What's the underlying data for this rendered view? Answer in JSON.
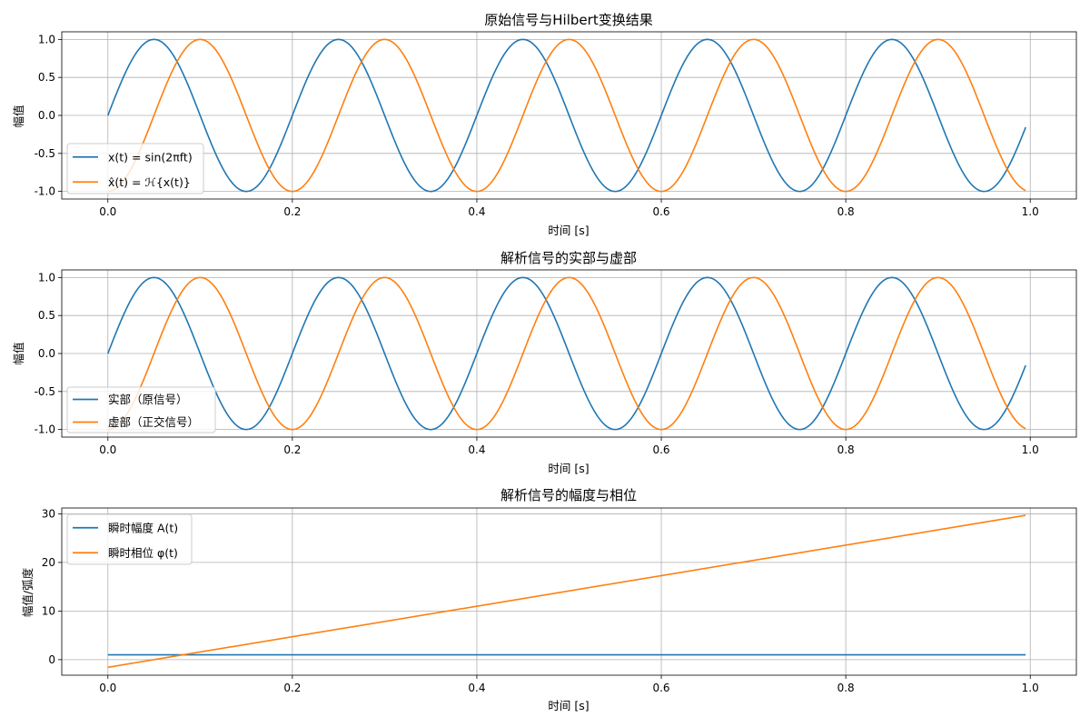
{
  "colors": {
    "series1": "#1f77b4",
    "series2": "#ff7f0e",
    "grid": "#b0b0b0"
  },
  "chart_data": [
    {
      "type": "line",
      "title": "原始信号与Hilbert变换结果",
      "xlabel": "时间 [s]",
      "ylabel": "幅值",
      "xlim": [
        -0.05,
        1.05
      ],
      "ylim": [
        -1.1,
        1.1
      ],
      "xticks": [
        0.0,
        0.2,
        0.4,
        0.6,
        0.8,
        1.0
      ],
      "xtick_labels": [
        "0.0",
        "0.2",
        "0.4",
        "0.6",
        "0.8",
        "1.0"
      ],
      "yticks": [
        -1.0,
        -0.5,
        0.0,
        0.5,
        1.0
      ],
      "ytick_labels": [
        "-1.0",
        "-0.5",
        "0.0",
        "0.5",
        "1.0"
      ],
      "grid": true,
      "legend_position": "lower-left",
      "frequency_hz": 5,
      "x_range": [
        0,
        0.995
      ],
      "series": [
        {
          "name": "x(t) = sin(2πft)",
          "function": "sin(2*pi*5*t)",
          "color": "#1f77b4"
        },
        {
          "name": "x̂(t) = ℋ{x(t)}",
          "function": "-cos(2*pi*5*t)",
          "color": "#ff7f0e"
        }
      ]
    },
    {
      "type": "line",
      "title": "解析信号的实部与虚部",
      "xlabel": "时间 [s]",
      "ylabel": "幅值",
      "xlim": [
        -0.05,
        1.05
      ],
      "ylim": [
        -1.1,
        1.1
      ],
      "xticks": [
        0.0,
        0.2,
        0.4,
        0.6,
        0.8,
        1.0
      ],
      "xtick_labels": [
        "0.0",
        "0.2",
        "0.4",
        "0.6",
        "0.8",
        "1.0"
      ],
      "yticks": [
        -1.0,
        -0.5,
        0.0,
        0.5,
        1.0
      ],
      "ytick_labels": [
        "-1.0",
        "-0.5",
        "0.0",
        "0.5",
        "1.0"
      ],
      "grid": true,
      "legend_position": "lower-left",
      "frequency_hz": 5,
      "x_range": [
        0,
        0.995
      ],
      "series": [
        {
          "name": "实部（原信号）",
          "function": "sin(2*pi*5*t)",
          "color": "#1f77b4"
        },
        {
          "name": "虚部（正交信号）",
          "function": "-cos(2*pi*5*t)",
          "color": "#ff7f0e"
        }
      ]
    },
    {
      "type": "line",
      "title": "解析信号的幅度与相位",
      "xlabel": "时间 [s]",
      "ylabel": "幅值/弧度",
      "xlim": [
        -0.05,
        1.05
      ],
      "ylim": [
        -3.2,
        31.2
      ],
      "xticks": [
        0.0,
        0.2,
        0.4,
        0.6,
        0.8,
        1.0
      ],
      "xtick_labels": [
        "0.0",
        "0.2",
        "0.4",
        "0.6",
        "0.8",
        "1.0"
      ],
      "yticks": [
        0,
        10,
        20,
        30
      ],
      "ytick_labels": [
        "0",
        "10",
        "20",
        "30"
      ],
      "grid": true,
      "legend_position": "upper-left",
      "x_range": [
        0,
        0.995
      ],
      "series": [
        {
          "name": "瞬时幅度 A(t)",
          "function": "1",
          "color": "#1f77b4",
          "x": [
            0,
            0.995
          ],
          "y": [
            1.0,
            1.0
          ]
        },
        {
          "name": "瞬时相位 φ(t)",
          "function": "2*pi*5*t - pi/2",
          "color": "#ff7f0e",
          "x": [
            0,
            0.995
          ],
          "y": [
            -1.571,
            29.688
          ]
        }
      ]
    }
  ]
}
